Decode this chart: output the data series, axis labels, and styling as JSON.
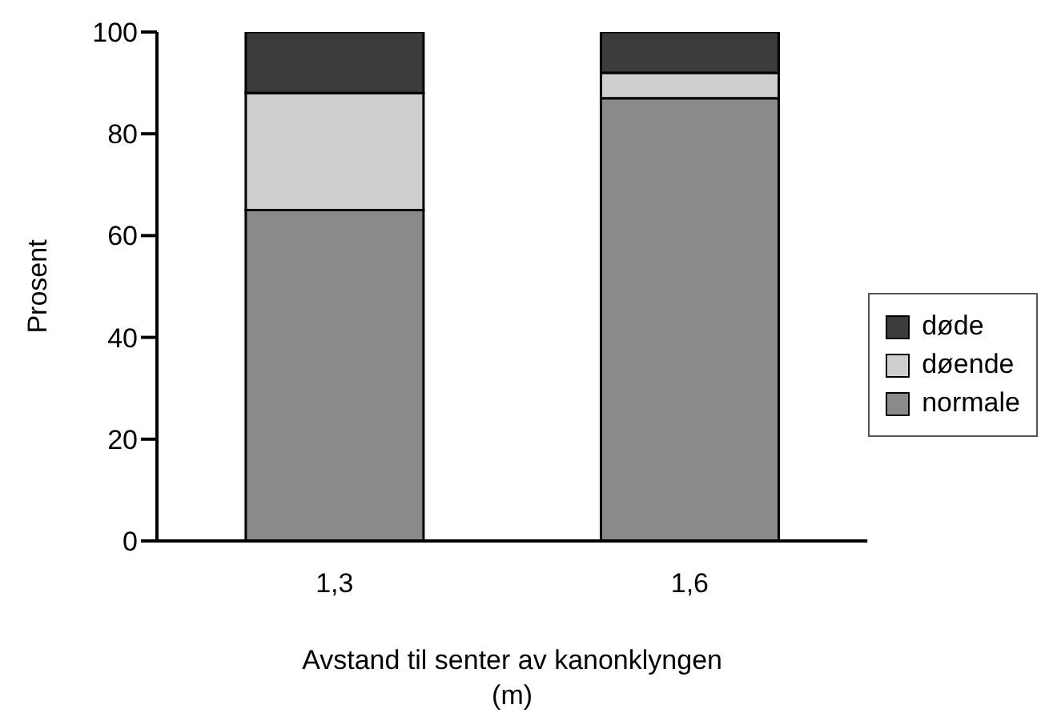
{
  "chart_data": {
    "type": "bar",
    "stacked": true,
    "categories": [
      "1,3",
      "1,6"
    ],
    "xlabel": "Avstand til senter av kanonklyngen\n(m)",
    "ylabel": "Prosent",
    "ylim": [
      0,
      100
    ],
    "yticks": [
      0,
      20,
      40,
      60,
      80,
      100
    ],
    "legend": "right",
    "grid": false,
    "series": [
      {
        "name": "normale",
        "color": "#8a8a8a",
        "values": [
          65,
          87
        ]
      },
      {
        "name": "døende",
        "color": "#cfcfcf",
        "values": [
          23,
          5
        ]
      },
      {
        "name": "døde",
        "color": "#3c3c3c",
        "values": [
          12,
          8
        ]
      }
    ]
  }
}
